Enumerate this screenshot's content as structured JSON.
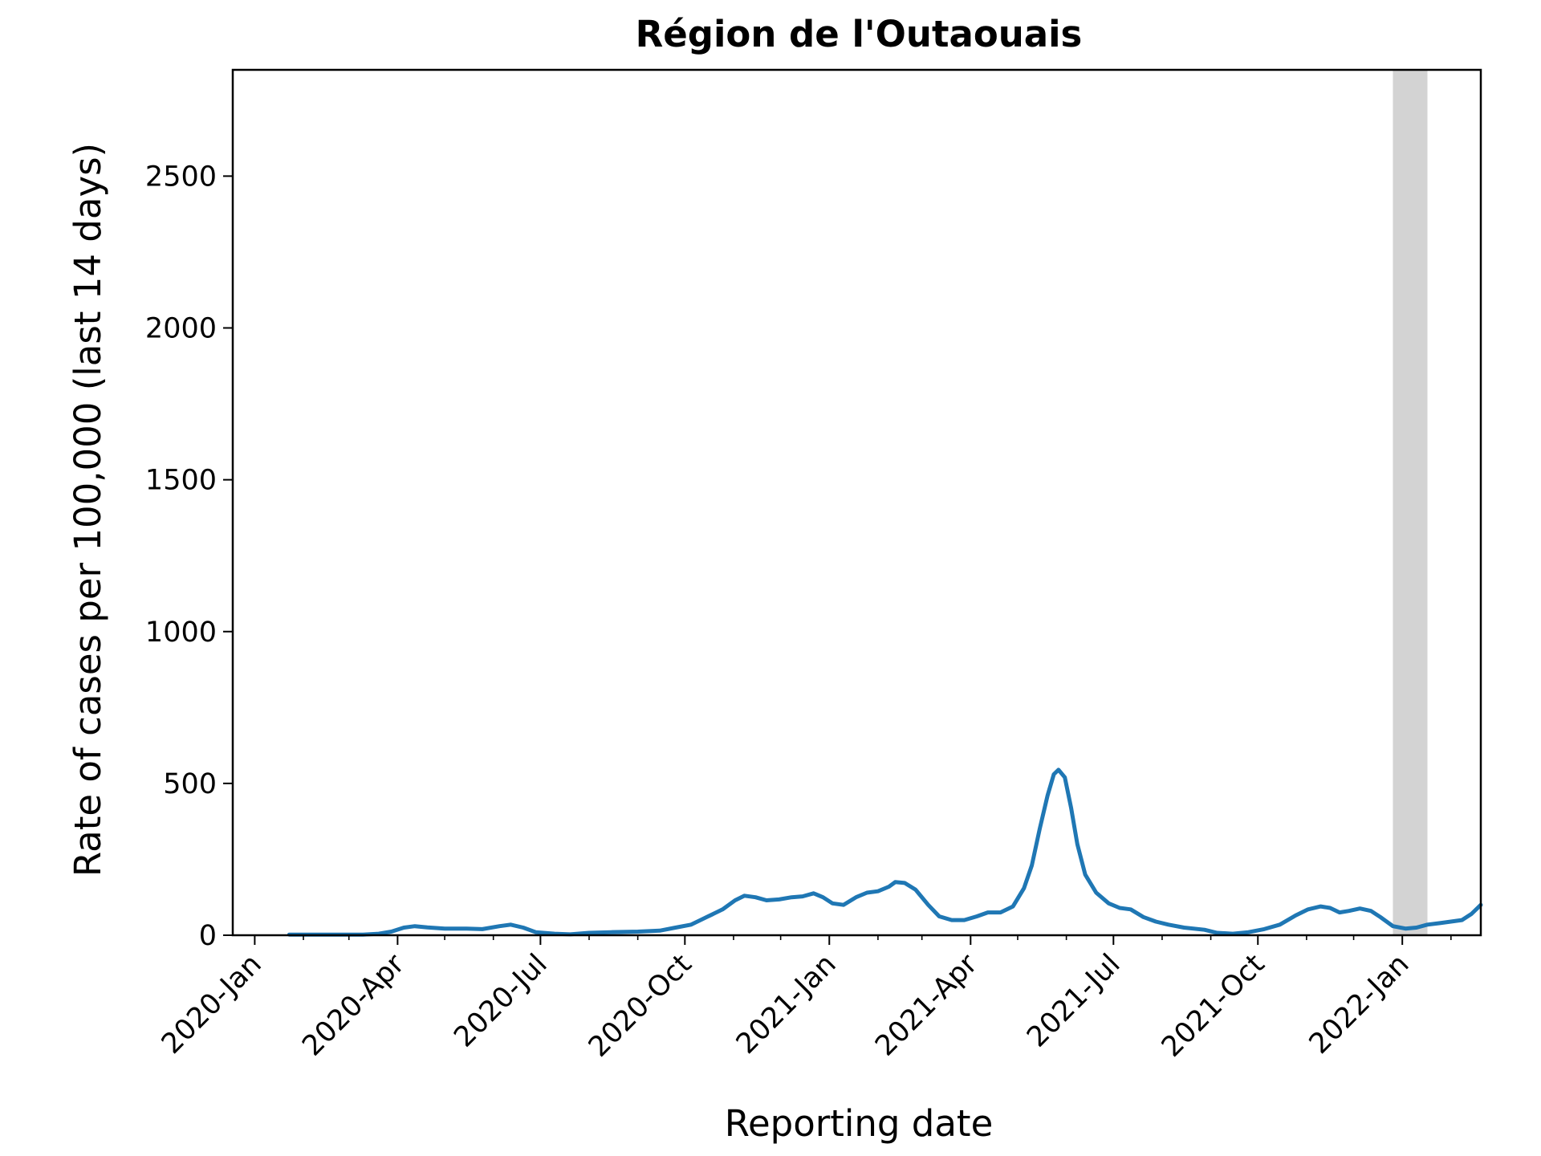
{
  "chart_data": {
    "type": "line",
    "title": "Région de l'Outaouais",
    "xlabel": "Reporting date",
    "ylabel": "Rate of cases per 100,000 (last 14 days)",
    "xlim": [
      "2019-12-18",
      "2022-02-20"
    ],
    "ylim": [
      0,
      2850
    ],
    "grid": false,
    "legend": "none",
    "colors": {
      "line": "#1f77b4",
      "shade": "#d3d3d3",
      "axes": "#000000"
    },
    "shaded_period": {
      "from": "2021-12-26",
      "to": "2022-01-17"
    },
    "x_ticks": [
      {
        "date": "2020-01-01",
        "label": "2020-Jan"
      },
      {
        "date": "2020-04-01",
        "label": "2020-Apr"
      },
      {
        "date": "2020-07-01",
        "label": "2020-Jul"
      },
      {
        "date": "2020-10-01",
        "label": "2020-Oct"
      },
      {
        "date": "2021-01-01",
        "label": "2021-Jan"
      },
      {
        "date": "2021-04-01",
        "label": "2021-Apr"
      },
      {
        "date": "2021-07-01",
        "label": "2021-Jul"
      },
      {
        "date": "2021-10-01",
        "label": "2021-Oct"
      },
      {
        "date": "2022-01-01",
        "label": "2022-Jan"
      }
    ],
    "x_minor_ticks": [
      "2020-02-01",
      "2020-03-01",
      "2020-05-01",
      "2020-06-01",
      "2020-08-01",
      "2020-09-01",
      "2020-11-01",
      "2020-12-01",
      "2021-02-01",
      "2021-03-01",
      "2021-05-01",
      "2021-06-01",
      "2021-08-01",
      "2021-09-01",
      "2021-11-01",
      "2021-12-01",
      "2022-02-01"
    ],
    "y_ticks": [
      0,
      500,
      1000,
      1500,
      2000,
      2500
    ],
    "series": [
      {
        "points": [
          [
            "2020-01-23",
            2
          ],
          [
            "2020-02-15",
            2
          ],
          [
            "2020-03-10",
            2
          ],
          [
            "2020-03-20",
            5
          ],
          [
            "2020-03-28",
            12
          ],
          [
            "2020-04-05",
            25
          ],
          [
            "2020-04-12",
            30
          ],
          [
            "2020-04-20",
            26
          ],
          [
            "2020-05-01",
            22
          ],
          [
            "2020-05-15",
            22
          ],
          [
            "2020-05-25",
            20
          ],
          [
            "2020-06-05",
            30
          ],
          [
            "2020-06-12",
            35
          ],
          [
            "2020-06-20",
            25
          ],
          [
            "2020-06-28",
            10
          ],
          [
            "2020-07-10",
            5
          ],
          [
            "2020-07-20",
            3
          ],
          [
            "2020-08-01",
            8
          ],
          [
            "2020-08-15",
            10
          ],
          [
            "2020-09-01",
            12
          ],
          [
            "2020-09-15",
            15
          ],
          [
            "2020-09-25",
            25
          ],
          [
            "2020-10-05",
            35
          ],
          [
            "2020-10-15",
            60
          ],
          [
            "2020-10-25",
            85
          ],
          [
            "2020-11-02",
            115
          ],
          [
            "2020-11-08",
            130
          ],
          [
            "2020-11-15",
            125
          ],
          [
            "2020-11-22",
            115
          ],
          [
            "2020-11-30",
            118
          ],
          [
            "2020-12-08",
            125
          ],
          [
            "2020-12-15",
            128
          ],
          [
            "2020-12-22",
            138
          ],
          [
            "2020-12-28",
            125
          ],
          [
            "2021-01-03",
            105
          ],
          [
            "2021-01-10",
            100
          ],
          [
            "2021-01-18",
            125
          ],
          [
            "2021-01-25",
            140
          ],
          [
            "2021-02-01",
            145
          ],
          [
            "2021-02-08",
            160
          ],
          [
            "2021-02-12",
            175
          ],
          [
            "2021-02-18",
            172
          ],
          [
            "2021-02-25",
            150
          ],
          [
            "2021-03-05",
            100
          ],
          [
            "2021-03-12",
            62
          ],
          [
            "2021-03-20",
            50
          ],
          [
            "2021-03-28",
            50
          ],
          [
            "2021-04-05",
            62
          ],
          [
            "2021-04-12",
            75
          ],
          [
            "2021-04-20",
            75
          ],
          [
            "2021-04-28",
            95
          ],
          [
            "2021-05-05",
            155
          ],
          [
            "2021-05-10",
            230
          ],
          [
            "2021-05-15",
            350
          ],
          [
            "2021-05-20",
            460
          ],
          [
            "2021-05-24",
            530
          ],
          [
            "2021-05-27",
            545
          ],
          [
            "2021-05-31",
            520
          ],
          [
            "2021-06-04",
            420
          ],
          [
            "2021-06-08",
            300
          ],
          [
            "2021-06-13",
            200
          ],
          [
            "2021-06-20",
            140
          ],
          [
            "2021-06-28",
            105
          ],
          [
            "2021-07-05",
            90
          ],
          [
            "2021-07-12",
            85
          ],
          [
            "2021-07-20",
            60
          ],
          [
            "2021-07-28",
            45
          ],
          [
            "2021-08-05",
            35
          ],
          [
            "2021-08-15",
            25
          ],
          [
            "2021-08-28",
            18
          ],
          [
            "2021-09-05",
            8
          ],
          [
            "2021-09-15",
            5
          ],
          [
            "2021-09-25",
            10
          ],
          [
            "2021-10-05",
            20
          ],
          [
            "2021-10-15",
            35
          ],
          [
            "2021-10-25",
            65
          ],
          [
            "2021-11-02",
            85
          ],
          [
            "2021-11-10",
            95
          ],
          [
            "2021-11-16",
            90
          ],
          [
            "2021-11-22",
            75
          ],
          [
            "2021-11-28",
            80
          ],
          [
            "2021-12-05",
            88
          ],
          [
            "2021-12-12",
            80
          ],
          [
            "2021-12-18",
            60
          ],
          [
            "2021-12-26",
            30
          ],
          [
            "2022-01-03",
            22
          ],
          [
            "2022-01-10",
            25
          ],
          [
            "2022-01-17",
            35
          ],
          [
            "2022-01-25",
            40
          ],
          [
            "2022-02-01",
            45
          ],
          [
            "2022-02-08",
            50
          ],
          [
            "2022-02-14",
            70
          ],
          [
            "2022-02-20",
            100
          ]
        ]
      }
    ]
  }
}
